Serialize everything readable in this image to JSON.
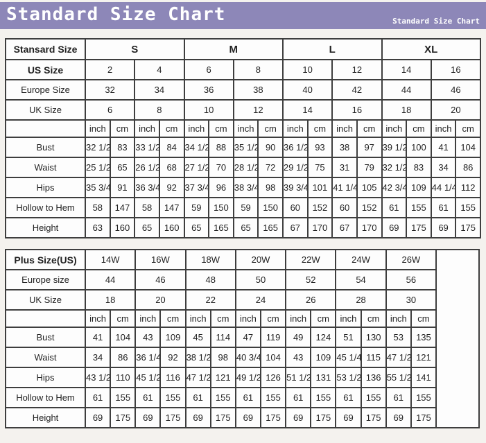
{
  "header": {
    "title": "Standard Size Chart",
    "subtitle": "Standard Size Chart"
  },
  "colors": {
    "header_bar": "#8d87b8",
    "table_border": "#3e3e3e",
    "cell_background": "#fdfdfd",
    "page_background": "#f4f2ee",
    "title_text": "#ffffff"
  },
  "chart_data": [
    {
      "type": "table",
      "title": "Stansard Size",
      "pairs": 8,
      "trailing_empty": false,
      "header_rows": [
        {
          "label": "Stansard Size",
          "label_bold": true,
          "span": 4,
          "cells_bold": true,
          "cells": [
            "S",
            "M",
            "L",
            "XL"
          ]
        },
        {
          "label": "US Size",
          "label_bold": true,
          "span": 2,
          "cells_bold": false,
          "cells": [
            "2",
            "4",
            "6",
            "8",
            "10",
            "12",
            "14",
            "16"
          ]
        },
        {
          "label": "Europe Size",
          "label_bold": false,
          "span": 2,
          "cells_bold": false,
          "cells": [
            "32",
            "34",
            "36",
            "38",
            "40",
            "42",
            "44",
            "46"
          ]
        },
        {
          "label": "UK Size",
          "label_bold": false,
          "span": 2,
          "cells_bold": false,
          "cells": [
            "6",
            "8",
            "10",
            "12",
            "14",
            "16",
            "18",
            "20"
          ]
        }
      ],
      "units": [
        "inch",
        "cm"
      ],
      "measure_rows": [
        {
          "label": "Bust",
          "cells": [
            "32 1/2",
            "83",
            "33 1/2",
            "84",
            "34 1/2",
            "88",
            "35 1/2",
            "90",
            "36 1/2",
            "93",
            "38",
            "97",
            "39 1/2",
            "100",
            "41",
            "104"
          ]
        },
        {
          "label": "Waist",
          "cells": [
            "25 1/2",
            "65",
            "26 1/2",
            "68",
            "27 1/2",
            "70",
            "28 1/2",
            "72",
            "29 1/2",
            "75",
            "31",
            "79",
            "32 1/2",
            "83",
            "34",
            "86"
          ]
        },
        {
          "label": "Hips",
          "cells": [
            "35 3/4",
            "91",
            "36 3/4",
            "92",
            "37 3/4",
            "96",
            "38 3/4",
            "98",
            "39 3/4",
            "101",
            "41 1/4",
            "105",
            "42 3/4",
            "109",
            "44 1/4",
            "112"
          ]
        },
        {
          "label": "Hollow to Hem",
          "cells": [
            "58",
            "147",
            "58",
            "147",
            "59",
            "150",
            "59",
            "150",
            "60",
            "152",
            "60",
            "152",
            "61",
            "155",
            "61",
            "155"
          ]
        },
        {
          "label": "Height",
          "cells": [
            "63",
            "160",
            "65",
            "160",
            "65",
            "165",
            "65",
            "165",
            "67",
            "170",
            "67",
            "170",
            "69",
            "175",
            "69",
            "175"
          ]
        }
      ]
    },
    {
      "type": "table",
      "title": "Plus Size(US)",
      "pairs": 7,
      "trailing_empty": true,
      "header_rows": [
        {
          "label": "Plus Size(US)",
          "label_bold": true,
          "span": 2,
          "cells_bold": false,
          "cells": [
            "14W",
            "16W",
            "18W",
            "20W",
            "22W",
            "24W",
            "26W"
          ]
        },
        {
          "label": "Europe size",
          "label_bold": false,
          "span": 2,
          "cells_bold": false,
          "cells": [
            "44",
            "46",
            "48",
            "50",
            "52",
            "54",
            "56"
          ]
        },
        {
          "label": "UK Size",
          "label_bold": false,
          "span": 2,
          "cells_bold": false,
          "cells": [
            "18",
            "20",
            "22",
            "24",
            "26",
            "28",
            "30"
          ]
        }
      ],
      "units": [
        "inch",
        "cm"
      ],
      "measure_rows": [
        {
          "label": "Bust",
          "cells": [
            "41",
            "104",
            "43",
            "109",
            "45",
            "114",
            "47",
            "119",
            "49",
            "124",
            "51",
            "130",
            "53",
            "135"
          ]
        },
        {
          "label": "Waist",
          "cells": [
            "34",
            "86",
            "36 1/4",
            "92",
            "38 1/2",
            "98",
            "40 3/4",
            "104",
            "43",
            "109",
            "45 1/4",
            "115",
            "47 1/2",
            "121"
          ]
        },
        {
          "label": "Hips",
          "cells": [
            "43 1/2",
            "110",
            "45 1/2",
            "116",
            "47 1/2",
            "121",
            "49 1/2",
            "126",
            "51 1/2",
            "131",
            "53 1/2",
            "136",
            "55 1/2",
            "141"
          ]
        },
        {
          "label": "Hollow to Hem",
          "cells": [
            "61",
            "155",
            "61",
            "155",
            "61",
            "155",
            "61",
            "155",
            "61",
            "155",
            "61",
            "155",
            "61",
            "155"
          ]
        },
        {
          "label": "Height",
          "cells": [
            "69",
            "175",
            "69",
            "175",
            "69",
            "175",
            "69",
            "175",
            "69",
            "175",
            "69",
            "175",
            "69",
            "175"
          ]
        }
      ]
    }
  ]
}
